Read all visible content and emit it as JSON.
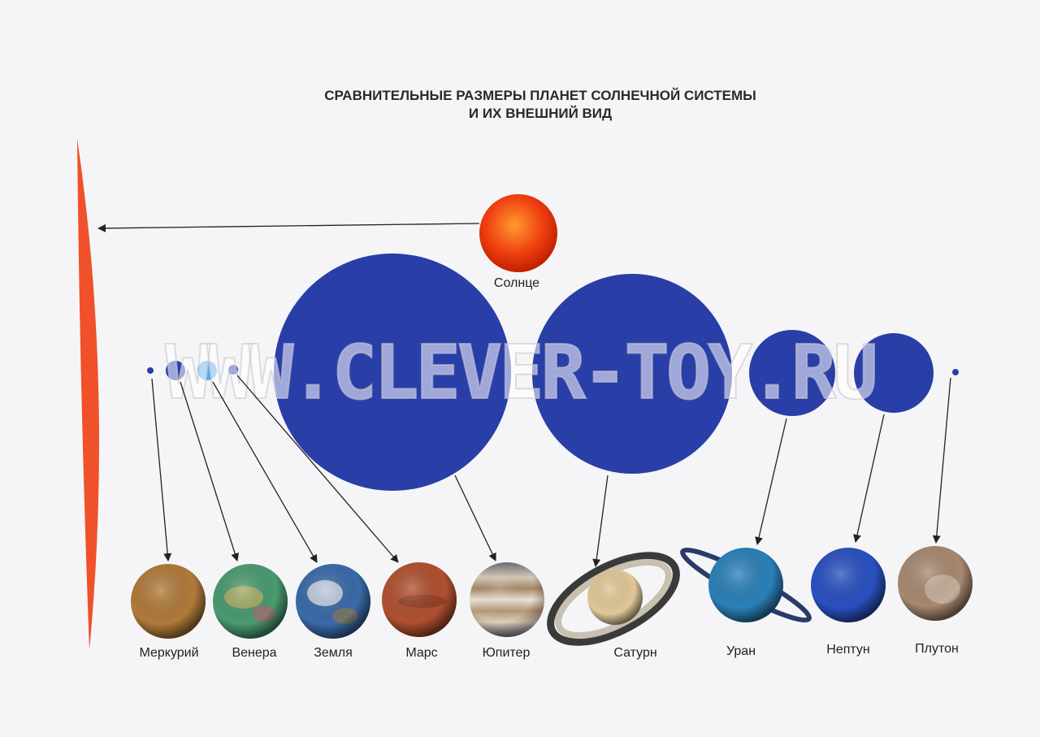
{
  "title": {
    "line1": "СРАВНИТЕЛЬНЫЕ РАЗМЕРЫ ПЛАНЕТ СОЛНЕЧНОЙ СИСТЕМЫ",
    "line2": "И ИХ ВНЕШНИЙ ВИД"
  },
  "sun": {
    "label": "Солнце",
    "color": "#f0502a"
  },
  "scale_color": "#2a3ea8",
  "planets": [
    {
      "label": "Меркурий",
      "color": "#9a5a28"
    },
    {
      "label": "Венера",
      "color": "#3a8a6a"
    },
    {
      "label": "Земля",
      "color": "#3a6aa8"
    },
    {
      "label": "Марс",
      "color": "#a84a2a"
    },
    {
      "label": "Юпитер",
      "color": "#c8b8a0"
    },
    {
      "label": "Сатурн",
      "color": "#d8c090"
    },
    {
      "label": "Уран",
      "color": "#2a7ab0"
    },
    {
      "label": "Нептун",
      "color": "#2a50b8"
    },
    {
      "label": "Плутон",
      "color": "#9a7a60"
    }
  ],
  "watermark": "WWW.CLEVER-TOY.RU"
}
